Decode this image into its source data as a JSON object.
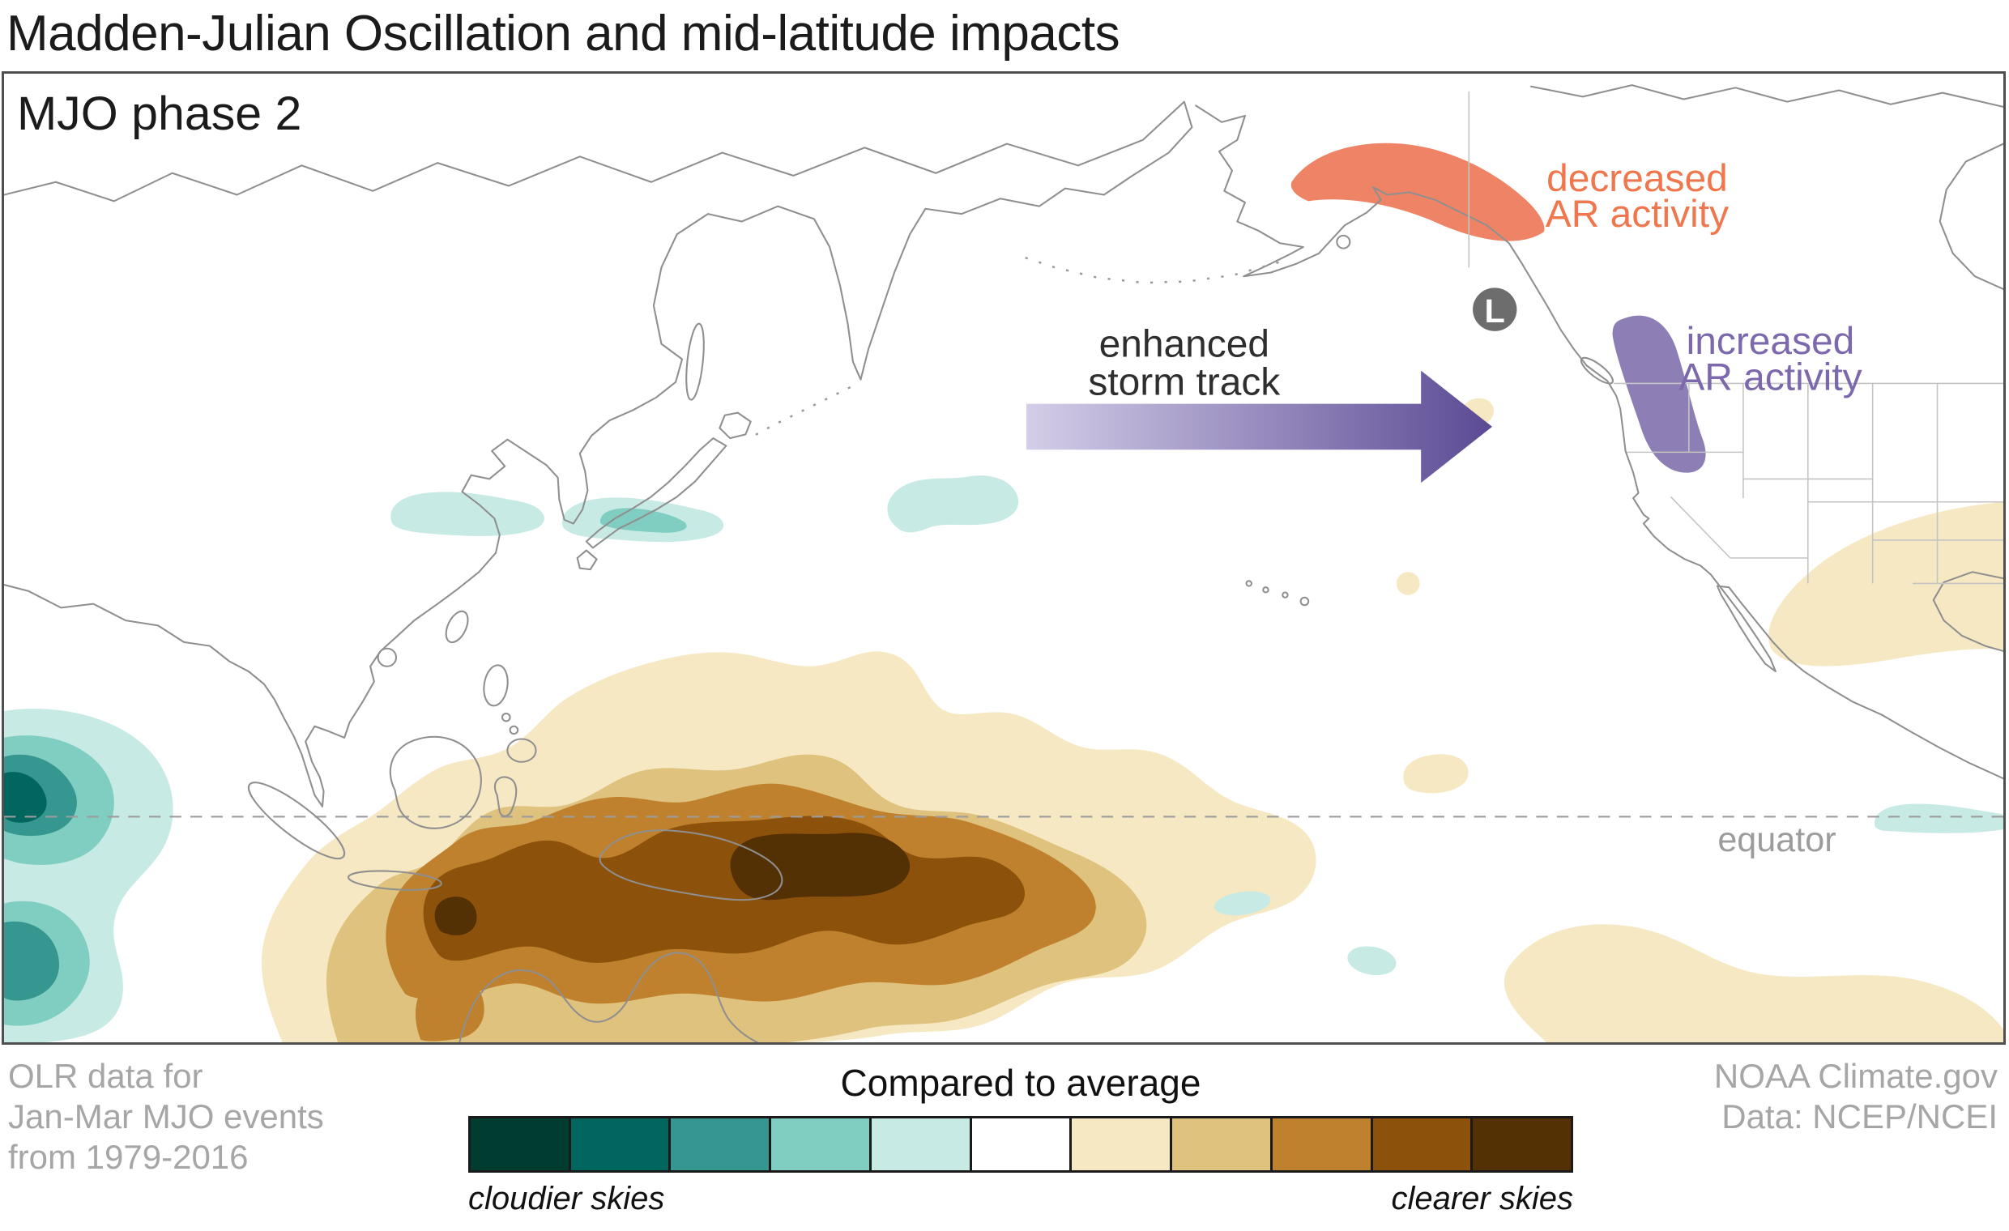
{
  "title": "Madden-Julian Oscillation and mid-latitude impacts",
  "map": {
    "phase_label": "MJO phase 2",
    "annotations": {
      "storm_track": {
        "line1": "enhanced",
        "line2": "storm track"
      },
      "decreased_ar": {
        "line1": "decreased",
        "line2": "AR activity",
        "color": "#f0764d"
      },
      "increased_ar": {
        "line1": "increased",
        "line2": "AR activity",
        "color": "#7b68ad"
      },
      "low_pressure": "L",
      "equator": "equator"
    },
    "region_colors": {
      "decreased_ar": "#ee8465",
      "increased_ar": "#8d7eb5",
      "low_marker": "#6d6d6d",
      "storm_arrow_start": "#d4cee8",
      "storm_arrow_end": "#5b4a94"
    }
  },
  "footer": {
    "source_note": {
      "line1": "OLR data for",
      "line2": "Jan-Mar MJO events",
      "line3": "from 1979-2016"
    },
    "credit": {
      "line1": "NOAA Climate.gov",
      "line2": "Data: NCEP/NCEI"
    }
  },
  "legend": {
    "title": "Compared to average",
    "left_label": "cloudier skies",
    "right_label": "clearer skies",
    "colors": [
      "#003c30",
      "#01665e",
      "#35978f",
      "#80cdc1",
      "#c7eae5",
      "#ffffff",
      "#f6e8c3",
      "#dfc27d",
      "#bf812d",
      "#8c510a",
      "#543005"
    ]
  }
}
